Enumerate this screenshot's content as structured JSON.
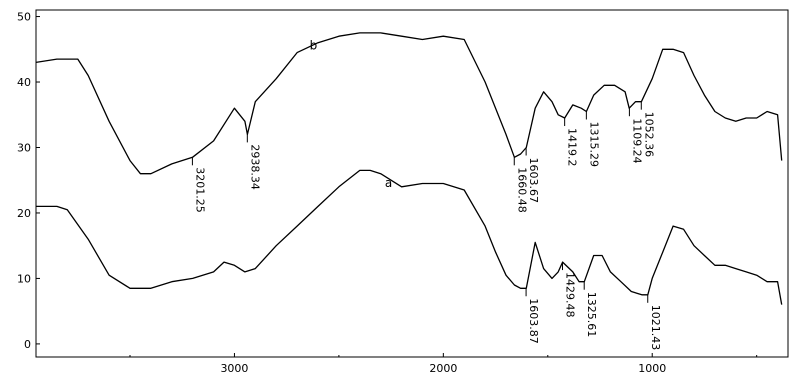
{
  "chart_data": {
    "type": "line",
    "title": "",
    "xlabel": "",
    "ylabel": "",
    "xlim": [
      3950,
      350
    ],
    "ylim": [
      -2,
      51
    ],
    "x_reversed": true,
    "grid": false,
    "legend": "none",
    "x_ticks": [
      {
        "value": 3000,
        "label": "3000"
      },
      {
        "value": 2000,
        "label": "2000"
      },
      {
        "value": 1000,
        "label": "1000"
      }
    ],
    "y_ticks": [
      {
        "value": 0,
        "label": "0"
      },
      {
        "value": 10,
        "label": "10"
      },
      {
        "value": 20,
        "label": "20"
      },
      {
        "value": 30,
        "label": "30"
      },
      {
        "value": 40,
        "label": "40"
      },
      {
        "value": 50,
        "label": "50"
      }
    ],
    "series": [
      {
        "name": "b",
        "label_at": [
          2640,
          45
        ],
        "x": [
          3950,
          3850,
          3750,
          3700,
          3600,
          3500,
          3450,
          3400,
          3300,
          3201,
          3100,
          3000,
          2950,
          2938,
          2900,
          2800,
          2700,
          2600,
          2500,
          2400,
          2300,
          2200,
          2100,
          2000,
          1900,
          1800,
          1700,
          1660,
          1630,
          1603,
          1560,
          1520,
          1480,
          1450,
          1419,
          1380,
          1340,
          1315,
          1280,
          1230,
          1180,
          1130,
          1110,
          1080,
          1052,
          1000,
          950,
          900,
          850,
          800,
          750,
          700,
          650,
          600,
          550,
          500,
          450,
          400,
          380
        ],
        "y": [
          43,
          43.5,
          43.5,
          41,
          34,
          28,
          26,
          26,
          27.5,
          28.5,
          31,
          36,
          34,
          32,
          37,
          40.5,
          44.5,
          46,
          47,
          47.5,
          47.5,
          47,
          46.5,
          47,
          46.5,
          40,
          32,
          28.5,
          29,
          30,
          36,
          38.5,
          37,
          35,
          34.5,
          36.5,
          36,
          35.5,
          38,
          39.5,
          39.5,
          38.5,
          36,
          37,
          37,
          40.5,
          45,
          45,
          44.5,
          41,
          38,
          35.5,
          34.5,
          34,
          34.5,
          34.5,
          35.5,
          35,
          28
        ]
      },
      {
        "name": "a",
        "label_at": [
          2280,
          24
        ],
        "x": [
          3950,
          3850,
          3800,
          3700,
          3600,
          3500,
          3400,
          3300,
          3200,
          3100,
          3050,
          3000,
          2950,
          2900,
          2800,
          2700,
          2600,
          2500,
          2400,
          2350,
          2300,
          2200,
          2100,
          2000,
          1900,
          1800,
          1750,
          1700,
          1660,
          1630,
          1603,
          1560,
          1520,
          1480,
          1450,
          1429,
          1380,
          1350,
          1325,
          1280,
          1240,
          1200,
          1150,
          1100,
          1050,
          1021,
          1000,
          950,
          900,
          850,
          800,
          750,
          700,
          650,
          600,
          550,
          500,
          450,
          400,
          380
        ],
        "y": [
          21,
          21,
          20.5,
          16,
          10.5,
          8.5,
          8.5,
          9.5,
          10,
          11,
          12.5,
          12,
          11,
          11.5,
          15,
          18,
          21,
          24,
          26.5,
          26.5,
          26,
          24,
          24.5,
          24.5,
          23.5,
          18,
          14,
          10.5,
          9,
          8.5,
          8.5,
          15.5,
          11.5,
          10,
          11,
          12.5,
          11,
          9.5,
          9.5,
          13.5,
          13.5,
          11,
          9.5,
          8,
          7.5,
          7.5,
          10,
          14,
          18,
          17.5,
          15,
          13.5,
          12,
          12,
          11.5,
          11,
          10.5,
          9.5,
          9.5,
          6
        ]
      }
    ],
    "annotations": [
      {
        "series": "b",
        "x": 3201.25,
        "y": 28.5,
        "text": "3201.25"
      },
      {
        "series": "b",
        "x": 2938.34,
        "y": 32,
        "text": "2938.34"
      },
      {
        "series": "b",
        "x": 1660.48,
        "y": 28.5,
        "text": "1660.48"
      },
      {
        "series": "b",
        "x": 1603.67,
        "y": 30,
        "text": "1603.67"
      },
      {
        "series": "b",
        "x": 1419.2,
        "y": 34.5,
        "text": "1419.2"
      },
      {
        "series": "b",
        "x": 1315.29,
        "y": 35.5,
        "text": "1315.29"
      },
      {
        "series": "b",
        "x": 1109.24,
        "y": 36,
        "text": "1109.24"
      },
      {
        "series": "b",
        "x": 1052.36,
        "y": 37,
        "text": "1052.36"
      },
      {
        "series": "a",
        "x": 1603.87,
        "y": 8.5,
        "text": "1603.87"
      },
      {
        "series": "a",
        "x": 1429.48,
        "y": 12.5,
        "text": "1429.48"
      },
      {
        "series": "a",
        "x": 1325.61,
        "y": 9.5,
        "text": "1325.61"
      },
      {
        "series": "a",
        "x": 1021.43,
        "y": 7.5,
        "text": "1021.43"
      }
    ],
    "colors": {
      "line": "#000000",
      "background": "#ffffff"
    }
  }
}
